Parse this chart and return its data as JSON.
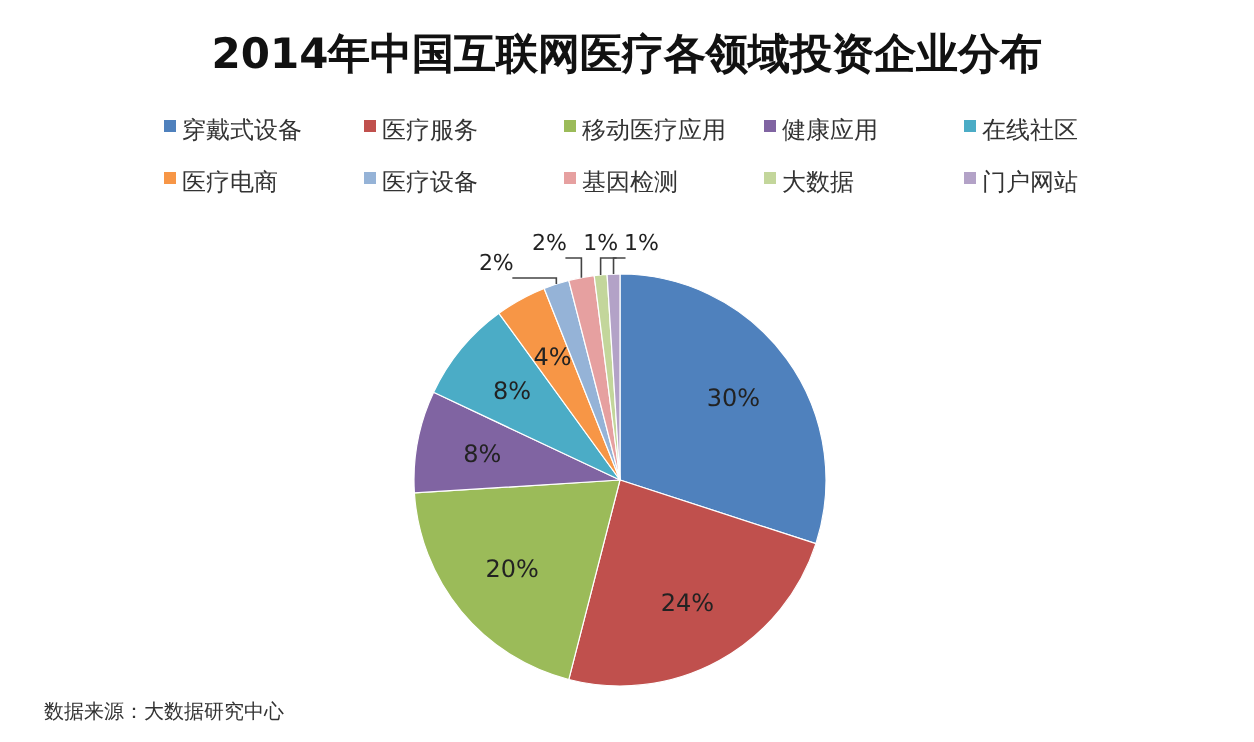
{
  "chart_data": {
    "type": "pie",
    "title": "2014年中国互联网医疗各领域投资企业分布",
    "categories": [
      "穿戴式设备",
      "医疗服务",
      "移动医疗应用",
      "健康应用",
      "在线社区",
      "医疗电商",
      "医疗设备",
      "基因检测",
      "大数据",
      "门户网站"
    ],
    "values": [
      30,
      24,
      20,
      8,
      8,
      4,
      2,
      2,
      1,
      1
    ],
    "value_labels": [
      "30%",
      "24%",
      "20%",
      "8%",
      "8%",
      "4%",
      "2%",
      "2%",
      "1%",
      "1%"
    ],
    "colors": [
      "#4f81bd",
      "#c0504d",
      "#9bbb59",
      "#8064a2",
      "#4bacc6",
      "#f79646",
      "#95b3d7",
      "#e6a0a0",
      "#c3d69b",
      "#b3a2c7"
    ],
    "legend": "top",
    "annotations": [
      "数据来源：大数据研究中心"
    ]
  }
}
